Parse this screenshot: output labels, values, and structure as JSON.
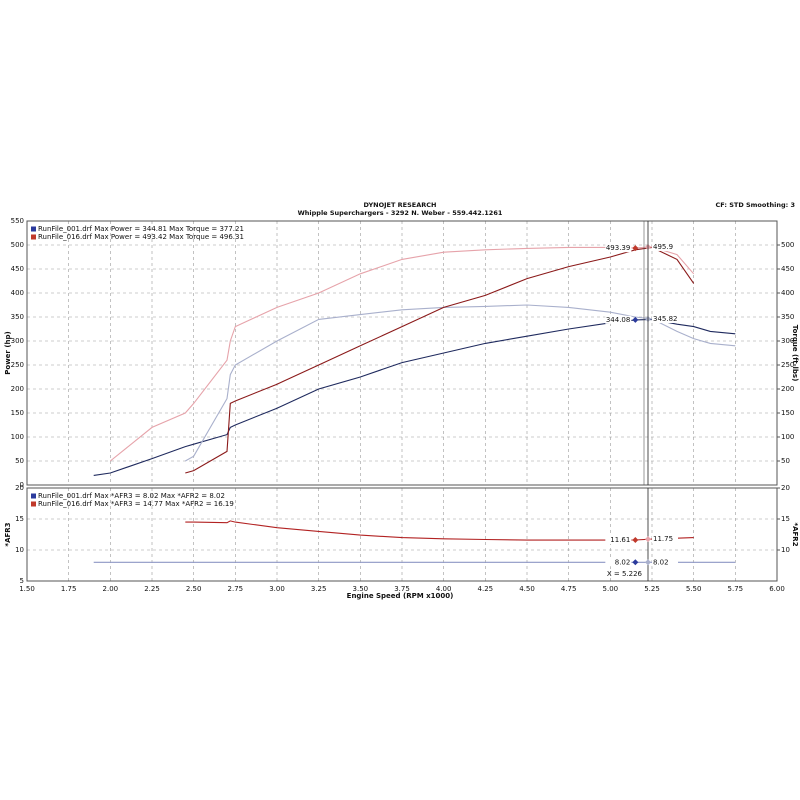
{
  "chart_data": [
    {
      "type": "line",
      "title": "DYNOJET RESEARCH",
      "subtitle": "Whipple Superchargers - 3292 N. Weber - 559.442.1261",
      "note": "CF: STD  Smoothing: 3",
      "ylabel": "Power (hp)",
      "y2label": "Torque (ft-lbs)",
      "x": [
        1.9,
        2.0,
        2.25,
        2.45,
        2.5,
        2.7,
        2.72,
        2.75,
        3.0,
        3.25,
        3.5,
        3.75,
        4.0,
        4.25,
        4.5,
        4.75,
        5.0,
        5.15,
        5.25,
        5.4,
        5.5,
        5.6,
        5.75
      ],
      "xlim": [
        1.5,
        6.0
      ],
      "ylim": [
        0,
        550
      ],
      "yticks": [
        0,
        50,
        100,
        150,
        200,
        250,
        300,
        350,
        400,
        450,
        500,
        550
      ],
      "y2lim": [
        0,
        550
      ],
      "y2ticks": [
        50,
        100,
        150,
        200,
        250,
        300,
        350,
        400,
        450,
        500
      ],
      "grid": true,
      "legend": [
        {
          "label": "RunFile_001.drf Max Power = 344.81    Max Torque = 377.21",
          "color": "#2b3a9c"
        },
        {
          "label": "RunFile_016.drf Max Power = 493.42    Max Torque = 496.31",
          "color": "#c0392b"
        }
      ],
      "series": [
        {
          "color": "#1f2a5e",
          "values": [
            20,
            25,
            55,
            80,
            85,
            105,
            120,
            125,
            160,
            200,
            225,
            255,
            275,
            295,
            310,
            325,
            338,
            344,
            345,
            335,
            330,
            320,
            315
          ]
        },
        {
          "color": "#a9b0cc",
          "axis": "y2",
          "values": [
            null,
            null,
            null,
            50,
            60,
            180,
            230,
            250,
            300,
            345,
            355,
            365,
            370,
            372,
            375,
            370,
            360,
            350,
            346,
            320,
            305,
            295,
            290
          ]
        },
        {
          "color": "#8b1a1a",
          "values": [
            null,
            null,
            null,
            25,
            30,
            70,
            170,
            175,
            210,
            250,
            290,
            330,
            370,
            395,
            430,
            455,
            475,
            490,
            495,
            470,
            420,
            null,
            null
          ]
        },
        {
          "color": "#e6a3aa",
          "axis": "y2",
          "values": [
            null,
            50,
            120,
            150,
            170,
            260,
            300,
            330,
            370,
            400,
            440,
            470,
            485,
            490,
            493,
            495,
            495,
            494,
            496,
            480,
            440,
            null,
            null
          ]
        }
      ],
      "markers": [
        {
          "x": 5.15,
          "y": 493.39,
          "color": "#c0392b"
        },
        {
          "x": 5.226,
          "y": 495.9,
          "color": "#e6a3aa"
        },
        {
          "x": 5.15,
          "y": 344.08,
          "color": "#2b3a9c"
        },
        {
          "x": 5.226,
          "y": 345.82,
          "color": "#a9b0cc"
        }
      ]
    },
    {
      "type": "line",
      "xlabel": "Engine Speed (RPM x1000)",
      "ylabel": "*AFR3",
      "y2label": "*AFR2",
      "x": [
        1.9,
        2.0,
        2.25,
        2.45,
        2.5,
        2.7,
        2.72,
        2.75,
        3.0,
        3.25,
        3.5,
        3.75,
        4.0,
        4.25,
        4.5,
        4.75,
        5.0,
        5.15,
        5.25,
        5.4,
        5.5,
        5.6,
        5.75
      ],
      "xlim": [
        1.5,
        6.0
      ],
      "xticks": [
        {
          "value": 1.5,
          "label": "1.50"
        },
        {
          "value": 1.75,
          "label": "1.75"
        },
        {
          "value": 2.0,
          "label": "2.00"
        },
        {
          "value": 2.25,
          "label": "2.25"
        },
        {
          "value": 2.5,
          "label": "2.50"
        },
        {
          "value": 2.75,
          "label": "2.75"
        },
        {
          "value": 3.0,
          "label": "3.00"
        },
        {
          "value": 3.25,
          "label": "3.25"
        },
        {
          "value": 3.5,
          "label": "3.50"
        },
        {
          "value": 3.75,
          "label": "3.75"
        },
        {
          "value": 4.0,
          "label": "4.00"
        },
        {
          "value": 4.25,
          "label": "4.25"
        },
        {
          "value": 4.5,
          "label": "4.50"
        },
        {
          "value": 4.75,
          "label": "4.75"
        },
        {
          "value": 5.0,
          "label": "5.00"
        },
        {
          "value": 5.25,
          "label": "5.25"
        },
        {
          "value": 5.5,
          "label": "5.50"
        },
        {
          "value": 5.75,
          "label": "5.75"
        },
        {
          "value": 6.0,
          "label": "6.00"
        }
      ],
      "ylim": [
        5,
        20
      ],
      "yticks": [
        5,
        10,
        15,
        20
      ],
      "y2lim": [
        5,
        20
      ],
      "y2ticks": [
        10,
        15,
        20
      ],
      "grid": true,
      "legend": [
        {
          "label": "RunFile_001.drf Max *AFR3 = 8.02    Max *AFR2 = 8.02",
          "color": "#2b3a9c"
        },
        {
          "label": "RunFile_016.drf Max *AFR3 = 14.77   Max *AFR2 = 16.19",
          "color": "#c0392b"
        }
      ],
      "series": [
        {
          "color": "#8e97c4",
          "values": [
            8.02,
            8.02,
            8.02,
            8.02,
            8.02,
            8.02,
            8.02,
            8.02,
            8.02,
            8.02,
            8.02,
            8.02,
            8.02,
            8.02,
            8.02,
            8.02,
            8.02,
            8.02,
            8.02,
            8.02,
            8.02,
            8.02,
            8.02
          ]
        },
        {
          "color": "#b22222",
          "values": [
            null,
            null,
            null,
            14.5,
            14.5,
            14.4,
            14.7,
            14.5,
            13.6,
            13,
            12.4,
            12,
            11.8,
            11.7,
            11.6,
            11.6,
            11.6,
            11.61,
            11.75,
            11.9,
            12,
            null,
            null
          ]
        }
      ],
      "markers": [
        {
          "x": 5.15,
          "y": 11.61,
          "color": "#c0392b"
        },
        {
          "x": 5.226,
          "y": 11.75,
          "color": "#e6a3aa"
        },
        {
          "x": 5.15,
          "y": 8.02,
          "color": "#2b3a9c"
        },
        {
          "x": 5.226,
          "y": 8.02,
          "color": "#a9b0cc"
        }
      ],
      "cursor": {
        "x": 5.226,
        "label": "X = 5.226"
      }
    }
  ]
}
